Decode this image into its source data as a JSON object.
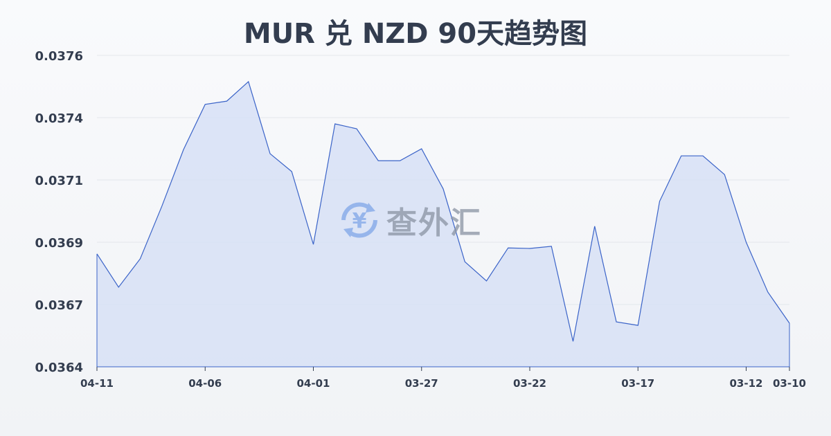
{
  "chart_data": {
    "type": "area",
    "title": "MUR 兑 NZD 90天趋势图",
    "xlabel": "",
    "ylabel": "",
    "ylim": [
      0.03642,
      0.03757
    ],
    "y_ticks": [
      "0.0376",
      "0.0374",
      "0.0371",
      "0.0369",
      "0.0367",
      "0.0364"
    ],
    "x_ticks": [
      {
        "label": "04-11",
        "index": 0
      },
      {
        "label": "04-06",
        "index": 5
      },
      {
        "label": "04-01",
        "index": 10
      },
      {
        "label": "03-27",
        "index": 15
      },
      {
        "label": "03-22",
        "index": 20
      },
      {
        "label": "03-17",
        "index": 25
      },
      {
        "label": "03-12",
        "index": 30
      },
      {
        "label": "03-10",
        "index": 32
      }
    ],
    "values": [
      0.036837,
      0.036714,
      0.036819,
      0.037013,
      0.037222,
      0.037389,
      0.037401,
      0.037473,
      0.037207,
      0.037141,
      0.036872,
      0.037317,
      0.037299,
      0.037181,
      0.037181,
      0.037225,
      0.037077,
      0.036808,
      0.036737,
      0.036859,
      0.036857,
      0.036865,
      0.036514,
      0.036939,
      0.036586,
      0.036573,
      0.037031,
      0.037199,
      0.037199,
      0.03713,
      0.03688,
      0.036696,
      0.036581
    ],
    "grid": true,
    "colors": {
      "line": "#3a63c8",
      "fill": "#d7e1f6",
      "grid": "#e3e6eb"
    }
  },
  "watermark": {
    "text": "查外汇",
    "icon": "yen-exchange-icon"
  }
}
